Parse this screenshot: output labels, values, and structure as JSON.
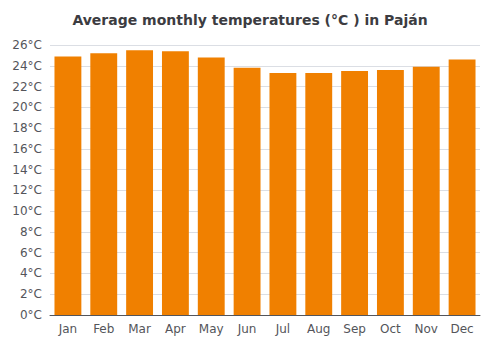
{
  "chart_data": {
    "type": "bar",
    "title": "Average monthly temperatures (°C ) in Paján",
    "categories": [
      "Jan",
      "Feb",
      "Mar",
      "Apr",
      "May",
      "Jun",
      "Jul",
      "Aug",
      "Sep",
      "Oct",
      "Nov",
      "Dec"
    ],
    "values": [
      24.9,
      25.2,
      25.5,
      25.4,
      24.8,
      23.8,
      23.3,
      23.3,
      23.5,
      23.6,
      23.9,
      24.6
    ],
    "color": "#F08000",
    "ylim": [
      0,
      26
    ],
    "yticks": [
      {
        "value": 0,
        "label": "0°C"
      },
      {
        "value": 2,
        "label": "2°C"
      },
      {
        "value": 4,
        "label": "4°C"
      },
      {
        "value": 6,
        "label": "6°C"
      },
      {
        "value": 8,
        "label": "8°C"
      },
      {
        "value": 10,
        "label": "10°C"
      },
      {
        "value": 12,
        "label": "12°C"
      },
      {
        "value": 14,
        "label": "14°C"
      },
      {
        "value": 16,
        "label": "16°C"
      },
      {
        "value": 18,
        "label": "18°C"
      },
      {
        "value": 20,
        "label": "20°C"
      },
      {
        "value": 22,
        "label": "22°C"
      },
      {
        "value": 24,
        "label": "24°C"
      },
      {
        "value": 26,
        "label": "26°C"
      }
    ],
    "grid": true
  }
}
